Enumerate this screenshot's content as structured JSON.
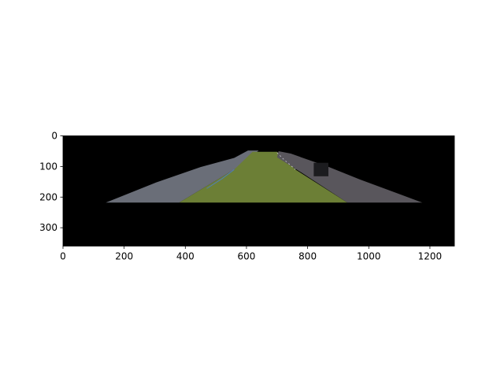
{
  "chart_data": {
    "type": "image",
    "image_extent": {
      "x": [
        0,
        1280
      ],
      "y": [
        0,
        360
      ]
    },
    "xlim": [
      0,
      1280
    ],
    "ylim": [
      360,
      0
    ],
    "y_inverted": true,
    "xticks": [
      0,
      200,
      400,
      600,
      800,
      1000,
      1200
    ],
    "yticks": [
      0,
      100,
      200,
      300
    ],
    "xlabel": "",
    "ylabel": "",
    "title": "",
    "grid": false,
    "background_color": "#000000",
    "regions": [
      {
        "name": "road-left",
        "color": "#6a6e78",
        "polygon": [
          [
            140,
            218
          ],
          [
            305,
            152
          ],
          [
            450,
            102
          ],
          [
            560,
            72
          ],
          [
            605,
            48
          ],
          [
            640,
            48
          ],
          [
            560,
            110
          ],
          [
            380,
            218
          ]
        ]
      },
      {
        "name": "lane",
        "color": "#6c7f36",
        "polygon": [
          [
            380,
            218
          ],
          [
            560,
            110
          ],
          [
            620,
            52
          ],
          [
            700,
            52
          ],
          [
            760,
            110
          ],
          [
            930,
            218
          ]
        ]
      },
      {
        "name": "road-right",
        "color": "#59565c",
        "polygon": [
          [
            930,
            218
          ],
          [
            780,
            120
          ],
          [
            700,
            70
          ],
          [
            705,
            50
          ],
          [
            745,
            58
          ],
          [
            870,
            102
          ],
          [
            970,
            142
          ],
          [
            1175,
            218
          ]
        ]
      }
    ],
    "vehicles": [
      {
        "name": "vehicle-right",
        "x": [
          820,
          868
        ],
        "y": [
          88,
          132
        ],
        "color": "#1c1c1f"
      }
    ]
  }
}
